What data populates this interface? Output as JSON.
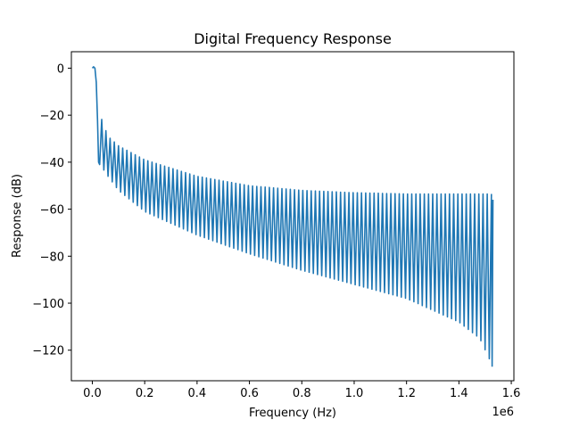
{
  "chart_data": {
    "type": "line",
    "title": "Digital Frequency Response",
    "xlabel": "Frequency (Hz)",
    "ylabel": "Response (dB)",
    "x_offset_text": "1e6",
    "xlim": [
      -80000,
      1610000
    ],
    "ylim": [
      -133,
      7
    ],
    "x_ticks": [
      0,
      200000,
      400000,
      600000,
      800000,
      1000000,
      1200000,
      1400000,
      1600000
    ],
    "x_tick_labels": [
      "0.0",
      "0.2",
      "0.4",
      "0.6",
      "0.8",
      "1.0",
      "1.2",
      "1.4",
      "1.6"
    ],
    "y_ticks": [
      0,
      -20,
      -40,
      -60,
      -80,
      -100,
      -120
    ],
    "y_tick_labels": [
      "0",
      "−20",
      "−40",
      "−60",
      "−80",
      "−100",
      "−120"
    ],
    "grid": false,
    "color": "#1f77b4",
    "series": [
      {
        "mainlobe": {
          "x": [
            0,
            5000,
            10000,
            15000,
            20000,
            24000
          ],
          "y": [
            0,
            0.6,
            0,
            -6,
            -22,
            -40
          ]
        },
        "first_null_freq": 28000,
        "max_freq": 1530000,
        "ripple_period_hz": 16000,
        "ripple_peaks": {
          "x": [
            30000,
            60000,
            100000,
            200000,
            400000,
            600000,
            800000,
            1000000,
            1200000,
            1400000,
            1530000
          ],
          "y": [
            -20,
            -29,
            -33,
            -39,
            -46,
            -50,
            -52,
            -53,
            -53.5,
            -53.5,
            -53.5
          ]
        },
        "ripple_troughs": {
          "x": [
            30000,
            60000,
            100000,
            200000,
            400000,
            600000,
            800000,
            1000000,
            1200000,
            1400000,
            1480000,
            1530000
          ],
          "y": [
            -41,
            -46,
            -52,
            -61,
            -71,
            -79,
            -86,
            -92,
            -98,
            -108,
            -115,
            -127
          ]
        }
      }
    ]
  }
}
